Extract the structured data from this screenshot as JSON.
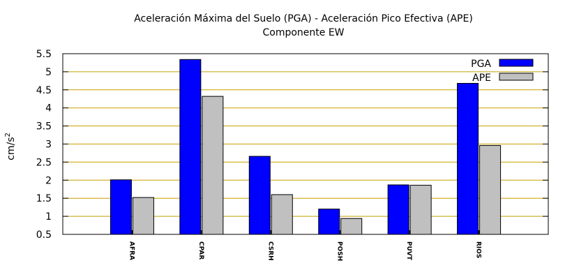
{
  "chart_data": {
    "type": "bar",
    "title": "Aceleración Máxima del Suelo (PGA) -  Aceleración Pico Efectiva (APE)",
    "subtitle": "Componente EW",
    "ylabel_base": "cm/s",
    "ylabel_exp": "2",
    "xlabel": "",
    "ylim": [
      0.5,
      5.5
    ],
    "yticks": [
      0.5,
      1,
      1.5,
      2,
      2.5,
      3,
      3.5,
      4,
      4.5,
      5,
      5.5
    ],
    "ytick_labels": [
      "0.5",
      "1",
      "1.5",
      "2",
      "2.5",
      "3",
      "3.5",
      "4",
      "4.5",
      "5",
      "5.5"
    ],
    "grid": true,
    "grid_color": "#c8a000",
    "legend_position": "top-right",
    "categories": [
      "AFRA",
      "CPAR",
      "CSRH",
      "POSH",
      "PUVT",
      "RIOS"
    ],
    "series": [
      {
        "name": "PGA",
        "color": "#0000ff",
        "values": [
          2.01,
          5.34,
          2.66,
          1.2,
          1.87,
          4.68
        ]
      },
      {
        "name": "APE",
        "color": "#c0c0c0",
        "values": [
          1.52,
          4.32,
          1.6,
          0.94,
          1.86,
          2.96
        ]
      }
    ]
  }
}
